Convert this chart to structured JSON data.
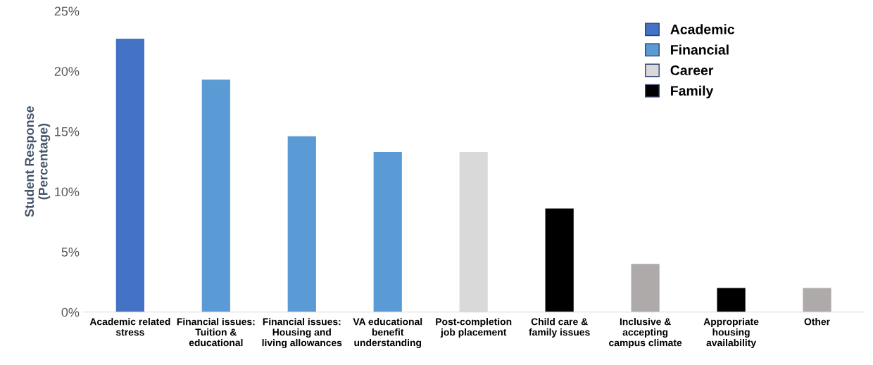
{
  "chart_data": {
    "type": "bar",
    "ylabel": "Student Response\n(Percentage)",
    "categories": [
      "Academic related\nstress",
      "Financial issues:\nTuition &\neducational",
      "Financial issues:\nHousing and\nliving allowances",
      "VA educational\nbenefit\nunderstanding",
      "Post-completion\njob placement",
      "Child care &\nfamily issues",
      "Inclusive &\naccepting\ncampus climate",
      "Appropriate\nhousing\navailability",
      "Other"
    ],
    "series": [
      {
        "name": "Academic",
        "color": "#4472c4",
        "values": [
          22.7,
          null,
          null,
          null,
          null,
          null,
          null,
          null,
          null
        ]
      },
      {
        "name": "Financial",
        "color": "#5b9bd5",
        "values": [
          null,
          19.3,
          14.6,
          13.3,
          null,
          null,
          null,
          null,
          null
        ]
      },
      {
        "name": "Career",
        "color": "#d9d9d9",
        "values": [
          null,
          null,
          null,
          null,
          13.3,
          null,
          null,
          null,
          null
        ]
      },
      {
        "name": "Family",
        "color": "#000000",
        "values": [
          null,
          null,
          null,
          null,
          null,
          8.6,
          null,
          2.0,
          null
        ]
      },
      {
        "color": "#aeaaaa",
        "values": [
          null,
          null,
          null,
          null,
          null,
          null,
          4.0,
          null,
          2.0
        ]
      }
    ],
    "ylim": [
      0,
      25
    ],
    "yticks": [
      {
        "value": 0,
        "label": "0%"
      },
      {
        "value": 5,
        "label": "5%"
      },
      {
        "value": 10,
        "label": "10%"
      },
      {
        "value": 15,
        "label": "15%"
      },
      {
        "value": 20,
        "label": "20%"
      },
      {
        "value": 25,
        "label": "25%"
      }
    ],
    "legend": "top right",
    "grid": false
  }
}
